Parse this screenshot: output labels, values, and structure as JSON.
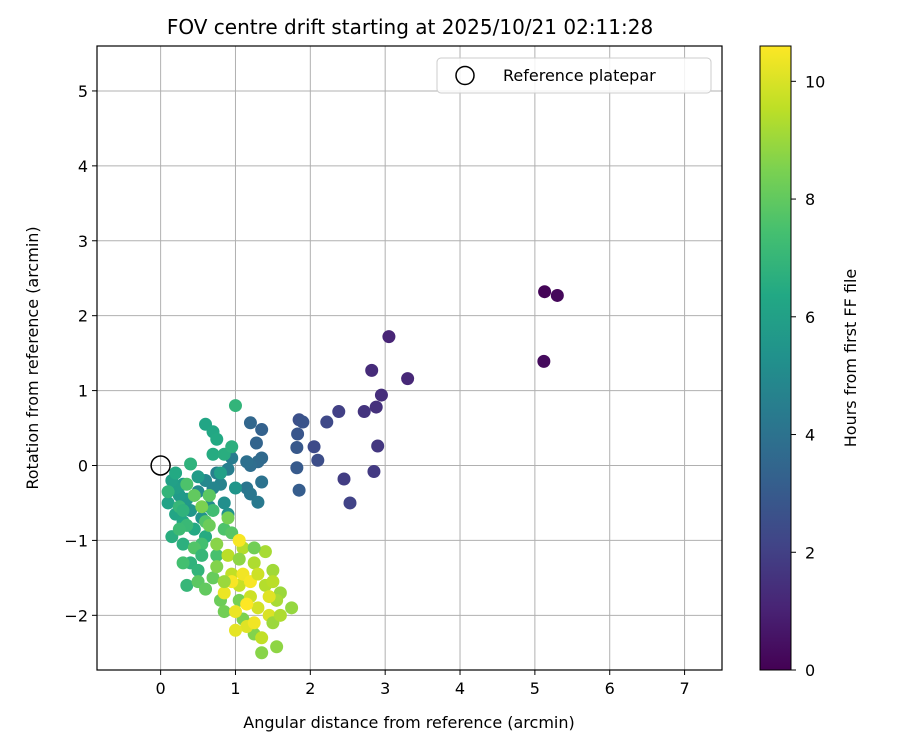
{
  "chart_data": {
    "type": "scatter",
    "title": "FOV centre drift starting at 2025/10/21 02:11:28",
    "xlabel": "Angular distance from reference (arcmin)",
    "ylabel": "Rotation from reference (arcmin)",
    "xlim": [
      -0.85,
      7.5
    ],
    "ylim": [
      -2.73,
      5.6
    ],
    "xticks": [
      0,
      1,
      2,
      3,
      4,
      5,
      6,
      7
    ],
    "yticks": [
      -2,
      -1,
      0,
      1,
      2,
      3,
      4,
      5
    ],
    "grid": true,
    "legend": {
      "position": "top-right",
      "entries": [
        "Reference platepar"
      ]
    },
    "reference_point": {
      "x": 0,
      "y": 0,
      "label": "Reference platepar"
    },
    "colorbar": {
      "label": "Hours from first FF file",
      "min": 0,
      "max": 10.6,
      "ticks": [
        0,
        2,
        4,
        6,
        8,
        10
      ],
      "colormap": "viridis"
    },
    "points": [
      {
        "x": 5.13,
        "y": 2.32,
        "h": 0.1
      },
      {
        "x": 5.3,
        "y": 2.27,
        "h": 0.2
      },
      {
        "x": 5.12,
        "y": 1.39,
        "h": 0.3
      },
      {
        "x": 3.05,
        "y": 1.72,
        "h": 1.1
      },
      {
        "x": 3.3,
        "y": 1.16,
        "h": 1.2
      },
      {
        "x": 2.82,
        "y": 1.27,
        "h": 1.3
      },
      {
        "x": 2.95,
        "y": 0.94,
        "h": 1.4
      },
      {
        "x": 2.88,
        "y": 0.78,
        "h": 1.5
      },
      {
        "x": 2.72,
        "y": 0.72,
        "h": 1.6
      },
      {
        "x": 2.9,
        "y": 0.26,
        "h": 1.7
      },
      {
        "x": 2.85,
        "y": -0.08,
        "h": 1.8
      },
      {
        "x": 2.45,
        "y": -0.18,
        "h": 1.9
      },
      {
        "x": 2.38,
        "y": 0.72,
        "h": 2.0
      },
      {
        "x": 2.53,
        "y": -0.5,
        "h": 2.1
      },
      {
        "x": 2.22,
        "y": 0.58,
        "h": 2.3
      },
      {
        "x": 2.05,
        "y": 0.25,
        "h": 2.4
      },
      {
        "x": 2.1,
        "y": 0.07,
        "h": 2.5
      },
      {
        "x": 1.85,
        "y": 0.61,
        "h": 2.6
      },
      {
        "x": 1.9,
        "y": 0.58,
        "h": 2.7
      },
      {
        "x": 1.83,
        "y": 0.42,
        "h": 2.8
      },
      {
        "x": 1.82,
        "y": 0.24,
        "h": 2.9
      },
      {
        "x": 1.82,
        "y": -0.03,
        "h": 3.0
      },
      {
        "x": 1.85,
        "y": -0.33,
        "h": 3.1
      },
      {
        "x": 1.35,
        "y": 0.48,
        "h": 3.3
      },
      {
        "x": 1.28,
        "y": 0.3,
        "h": 3.4
      },
      {
        "x": 1.2,
        "y": 0.57,
        "h": 3.5
      },
      {
        "x": 1.35,
        "y": 0.1,
        "h": 3.6
      },
      {
        "x": 1.3,
        "y": 0.05,
        "h": 3.7
      },
      {
        "x": 1.2,
        "y": 0.0,
        "h": 3.8
      },
      {
        "x": 1.15,
        "y": 0.05,
        "h": 3.9
      },
      {
        "x": 1.35,
        "y": -0.22,
        "h": 4.0
      },
      {
        "x": 1.15,
        "y": -0.3,
        "h": 4.1
      },
      {
        "x": 1.2,
        "y": -0.38,
        "h": 4.2
      },
      {
        "x": 1.3,
        "y": -0.49,
        "h": 4.3
      },
      {
        "x": 0.95,
        "y": 0.1,
        "h": 4.4
      },
      {
        "x": 0.9,
        "y": -0.05,
        "h": 4.5
      },
      {
        "x": 0.75,
        "y": -0.1,
        "h": 4.6
      },
      {
        "x": 0.8,
        "y": -0.25,
        "h": 4.7
      },
      {
        "x": 0.7,
        "y": -0.3,
        "h": 4.8
      },
      {
        "x": 0.6,
        "y": -0.2,
        "h": 4.9
      },
      {
        "x": 0.5,
        "y": -0.35,
        "h": 5.0
      },
      {
        "x": 0.65,
        "y": -0.55,
        "h": 5.1
      },
      {
        "x": 0.85,
        "y": -0.5,
        "h": 5.2
      },
      {
        "x": 0.9,
        "y": -0.65,
        "h": 5.3
      },
      {
        "x": 0.55,
        "y": -0.7,
        "h": 5.4
      },
      {
        "x": 0.4,
        "y": -0.6,
        "h": 5.5
      },
      {
        "x": 0.35,
        "y": -0.45,
        "h": 5.6
      },
      {
        "x": 0.25,
        "y": -0.4,
        "h": 5.7
      },
      {
        "x": 0.3,
        "y": -0.25,
        "h": 5.8
      },
      {
        "x": 0.2,
        "y": -0.3,
        "h": 5.9
      },
      {
        "x": 0.15,
        "y": -0.2,
        "h": 6.0
      },
      {
        "x": 0.1,
        "y": -0.5,
        "h": 6.1
      },
      {
        "x": 0.2,
        "y": -0.65,
        "h": 6.2
      },
      {
        "x": 0.3,
        "y": -0.75,
        "h": 6.3
      },
      {
        "x": 0.45,
        "y": -0.85,
        "h": 6.4
      },
      {
        "x": 0.6,
        "y": -0.95,
        "h": 6.5
      },
      {
        "x": 0.15,
        "y": -0.95,
        "h": 6.6
      },
      {
        "x": 0.3,
        "y": -1.05,
        "h": 6.7
      },
      {
        "x": 0.4,
        "y": -1.3,
        "h": 6.8
      },
      {
        "x": 0.5,
        "y": -1.4,
        "h": 6.9
      },
      {
        "x": 0.35,
        "y": -1.6,
        "h": 7.0
      },
      {
        "x": 0.6,
        "y": 0.55,
        "h": 6.2
      },
      {
        "x": 0.7,
        "y": 0.45,
        "h": 6.3
      },
      {
        "x": 0.75,
        "y": 0.35,
        "h": 6.4
      },
      {
        "x": 0.7,
        "y": 0.15,
        "h": 6.5
      },
      {
        "x": 0.85,
        "y": 0.15,
        "h": 6.6
      },
      {
        "x": 0.95,
        "y": 0.25,
        "h": 6.7
      },
      {
        "x": 0.4,
        "y": 0.02,
        "h": 6.8
      },
      {
        "x": 1.0,
        "y": 0.8,
        "h": 6.9
      },
      {
        "x": 0.25,
        "y": -0.55,
        "h": 7.0
      },
      {
        "x": 0.35,
        "y": -0.8,
        "h": 7.1
      },
      {
        "x": 0.65,
        "y": -0.4,
        "h": 7.2
      },
      {
        "x": 0.7,
        "y": -0.6,
        "h": 7.3
      },
      {
        "x": 0.55,
        "y": -1.05,
        "h": 7.4
      },
      {
        "x": 0.75,
        "y": -1.2,
        "h": 7.5
      },
      {
        "x": 0.85,
        "y": -0.85,
        "h": 7.6
      },
      {
        "x": 0.6,
        "y": -0.75,
        "h": 7.7
      },
      {
        "x": 0.95,
        "y": -0.9,
        "h": 7.8
      },
      {
        "x": 0.5,
        "y": -1.55,
        "h": 7.9
      },
      {
        "x": 0.6,
        "y": -1.65,
        "h": 8.0
      },
      {
        "x": 0.7,
        "y": -1.5,
        "h": 8.1
      },
      {
        "x": 0.8,
        "y": -1.8,
        "h": 8.2
      },
      {
        "x": 0.85,
        "y": -1.95,
        "h": 8.3
      },
      {
        "x": 1.05,
        "y": -1.8,
        "h": 8.4
      },
      {
        "x": 1.1,
        "y": -2.05,
        "h": 8.5
      },
      {
        "x": 1.25,
        "y": -2.25,
        "h": 8.6
      },
      {
        "x": 1.35,
        "y": -2.5,
        "h": 8.7
      },
      {
        "x": 1.55,
        "y": -2.42,
        "h": 8.8
      },
      {
        "x": 1.75,
        "y": -1.9,
        "h": 8.9
      },
      {
        "x": 1.6,
        "y": -1.7,
        "h": 9.0
      },
      {
        "x": 1.5,
        "y": -1.4,
        "h": 9.1
      },
      {
        "x": 1.4,
        "y": -1.15,
        "h": 9.2
      },
      {
        "x": 1.25,
        "y": -1.3,
        "h": 9.3
      },
      {
        "x": 1.1,
        "y": -1.1,
        "h": 9.4
      },
      {
        "x": 0.9,
        "y": -1.2,
        "h": 9.5
      },
      {
        "x": 0.95,
        "y": -1.45,
        "h": 9.6
      },
      {
        "x": 1.05,
        "y": -1.6,
        "h": 9.7
      },
      {
        "x": 1.2,
        "y": -1.75,
        "h": 9.8
      },
      {
        "x": 1.3,
        "y": -1.9,
        "h": 9.9
      },
      {
        "x": 1.45,
        "y": -2.0,
        "h": 10.0
      },
      {
        "x": 1.15,
        "y": -2.15,
        "h": 10.1
      },
      {
        "x": 1.0,
        "y": -2.2,
        "h": 10.2
      },
      {
        "x": 0.85,
        "y": -1.7,
        "h": 10.3
      },
      {
        "x": 1.1,
        "y": -1.45,
        "h": 10.4
      },
      {
        "x": 1.2,
        "y": -1.55,
        "h": 10.5
      },
      {
        "x": 1.05,
        "y": -1.0,
        "h": 10.5
      },
      {
        "x": 1.25,
        "y": -2.1,
        "h": 10.4
      },
      {
        "x": 1.55,
        "y": -1.8,
        "h": 9.2
      },
      {
        "x": 1.4,
        "y": -1.6,
        "h": 9.4
      },
      {
        "x": 0.75,
        "y": -1.05,
        "h": 8.7
      },
      {
        "x": 0.65,
        "y": -0.8,
        "h": 8.2
      },
      {
        "x": 0.55,
        "y": -0.55,
        "h": 8.5
      },
      {
        "x": 0.45,
        "y": -0.4,
        "h": 8.0
      },
      {
        "x": 0.35,
        "y": -0.25,
        "h": 7.6
      },
      {
        "x": 0.65,
        "y": -0.4,
        "h": 7.9
      },
      {
        "x": 0.9,
        "y": -0.7,
        "h": 8.4
      },
      {
        "x": 1.5,
        "y": -2.1,
        "h": 9.0
      },
      {
        "x": 1.35,
        "y": -2.3,
        "h": 9.6
      },
      {
        "x": 1.6,
        "y": -2.0,
        "h": 9.3
      },
      {
        "x": 1.45,
        "y": -1.75,
        "h": 10.1
      },
      {
        "x": 1.0,
        "y": -1.95,
        "h": 10.3
      },
      {
        "x": 0.95,
        "y": -1.55,
        "h": 10.5
      },
      {
        "x": 1.15,
        "y": -1.85,
        "h": 10.6
      },
      {
        "x": 1.3,
        "y": -1.45,
        "h": 9.8
      },
      {
        "x": 1.5,
        "y": -1.55,
        "h": 9.5
      },
      {
        "x": 0.2,
        "y": -0.1,
        "h": 6.4
      },
      {
        "x": 0.1,
        "y": -0.35,
        "h": 6.9
      },
      {
        "x": 0.25,
        "y": -0.85,
        "h": 7.2
      },
      {
        "x": 0.45,
        "y": -1.1,
        "h": 7.7
      },
      {
        "x": 0.3,
        "y": -1.3,
        "h": 7.4
      },
      {
        "x": 0.55,
        "y": -1.2,
        "h": 7.0
      },
      {
        "x": 0.75,
        "y": -1.35,
        "h": 8.6
      },
      {
        "x": 0.85,
        "y": -1.55,
        "h": 9.0
      },
      {
        "x": 1.05,
        "y": -1.25,
        "h": 8.8
      },
      {
        "x": 1.25,
        "y": -1.1,
        "h": 8.3
      },
      {
        "x": 0.8,
        "y": -0.1,
        "h": 6.0
      },
      {
        "x": 1.0,
        "y": -0.3,
        "h": 5.5
      },
      {
        "x": 0.5,
        "y": -0.15,
        "h": 5.8
      },
      {
        "x": 0.3,
        "y": -0.6,
        "h": 6.8
      }
    ]
  }
}
